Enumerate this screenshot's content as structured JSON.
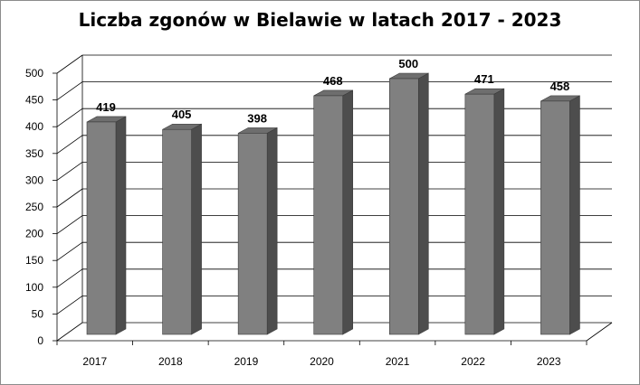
{
  "chart_data": {
    "type": "bar",
    "title": "Liczba zgonów w Bielawie w latach 2017 - 2023",
    "categories": [
      "2017",
      "2018",
      "2019",
      "2020",
      "2021",
      "2022",
      "2023"
    ],
    "series": [
      {
        "values": [
          419,
          405,
          398,
          468,
          500,
          471,
          458
        ]
      }
    ],
    "ylim": [
      0,
      500
    ],
    "yticks": [
      0,
      50,
      100,
      150,
      200,
      250,
      300,
      350,
      400,
      450,
      500
    ],
    "xlabel": "",
    "ylabel": "",
    "grid": true,
    "legend": "none",
    "style": "3d-column",
    "colors": {
      "bar_front": "#808080",
      "bar_side": "#4d4d4d",
      "bar_top": "#6e6e6e",
      "grid": "#000000"
    }
  }
}
